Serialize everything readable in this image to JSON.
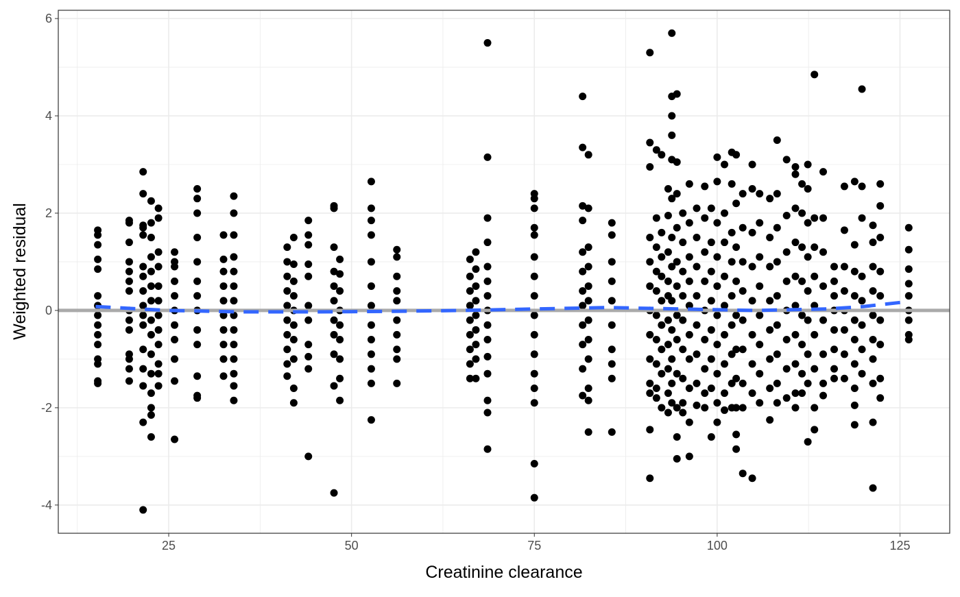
{
  "chart_data": {
    "type": "scatter",
    "title": "",
    "xlabel": "Creatinine clearance",
    "ylabel": "Weighted residual",
    "xlim": [
      9.9,
      131.8
    ],
    "ylim": [
      -4.58,
      6.17
    ],
    "xticks": [
      25,
      50,
      75,
      100,
      125
    ],
    "yticks": [
      -4,
      -2,
      0,
      2,
      4,
      6
    ],
    "grid": true,
    "reference_line": {
      "y": 0,
      "color": "#AAAAAA"
    },
    "smooth_line": {
      "color": "#3366FF",
      "style": "dashed",
      "x": [
        15,
        25,
        35,
        45,
        55,
        65,
        75,
        85,
        95,
        105,
        115,
        120,
        126
      ],
      "y": [
        0.08,
        0.0,
        -0.03,
        -0.03,
        -0.02,
        0.0,
        0.03,
        0.06,
        0.03,
        0.0,
        0.03,
        0.08,
        0.18
      ]
    },
    "point_color": "#000000",
    "columns": [
      {
        "x": 15.3,
        "y": [
          1.65,
          1.55,
          1.35,
          1.05,
          0.85,
          0.3,
          0.1,
          -0.1,
          -0.3,
          -0.5,
          -0.7,
          -1.0,
          -1.1,
          -1.45,
          -1.5
        ]
      },
      {
        "x": 19.6,
        "y": [
          1.85,
          1.8,
          1.4,
          1.0,
          0.8,
          0.6,
          0.4,
          0.0,
          -0.2,
          -0.4,
          -0.9,
          -1.0,
          -1.2,
          -1.45
        ]
      },
      {
        "x": 21.5,
        "y": [
          2.85,
          2.4,
          1.75,
          1.7,
          1.55,
          0.9,
          0.7,
          0.4,
          0.1,
          -0.1,
          -0.3,
          -0.8,
          -1.2,
          -1.55,
          -2.3,
          -4.1
        ]
      },
      {
        "x": 22.6,
        "y": [
          2.25,
          1.8,
          1.5,
          1.1,
          0.8,
          0.5,
          0.2,
          -0.2,
          -0.5,
          -0.9,
          -1.3,
          -1.7,
          -2.0,
          -2.15,
          -2.6
        ]
      },
      {
        "x": 23.6,
        "y": [
          2.1,
          1.9,
          1.2,
          0.9,
          0.5,
          0.2,
          -0.1,
          -0.4,
          -0.7,
          -1.1,
          -1.3,
          -1.55
        ]
      },
      {
        "x": 25.8,
        "y": [
          1.2,
          1.0,
          0.9,
          0.6,
          0.3,
          0.0,
          -0.3,
          -0.6,
          -1.0,
          -1.45,
          -2.65
        ]
      },
      {
        "x": 28.9,
        "y": [
          2.5,
          2.3,
          2.0,
          1.5,
          1.0,
          0.6,
          0.3,
          0.0,
          -0.4,
          -0.7,
          -1.35,
          -1.75,
          -1.8
        ]
      },
      {
        "x": 32.5,
        "y": [
          1.55,
          1.05,
          0.8,
          0.5,
          0.2,
          -0.1,
          -0.4,
          -0.7,
          -1.0,
          -1.35
        ]
      },
      {
        "x": 33.9,
        "y": [
          2.35,
          2.0,
          1.55,
          1.1,
          0.8,
          0.5,
          0.2,
          -0.1,
          -0.4,
          -0.7,
          -1.0,
          -1.3,
          -1.55,
          -1.85
        ]
      },
      {
        "x": 41.2,
        "y": [
          1.3,
          1.0,
          0.7,
          0.4,
          0.1,
          -0.2,
          -0.5,
          -0.8,
          -1.1,
          -1.35
        ]
      },
      {
        "x": 42.1,
        "y": [
          1.5,
          0.95,
          0.6,
          0.3,
          0.0,
          -0.3,
          -0.6,
          -1.0,
          -1.6,
          -1.9
        ]
      },
      {
        "x": 44.1,
        "y": [
          1.85,
          1.55,
          1.35,
          0.95,
          0.7,
          0.1,
          -0.2,
          -0.7,
          -0.95,
          -1.2,
          -3.0
        ]
      },
      {
        "x": 47.6,
        "y": [
          2.15,
          2.1,
          1.3,
          0.8,
          0.5,
          0.2,
          -0.2,
          -0.5,
          -0.9,
          -1.55,
          -3.75
        ]
      },
      {
        "x": 48.4,
        "y": [
          1.05,
          0.75,
          0.4,
          0.0,
          -0.3,
          -0.6,
          -1.0,
          -1.4,
          -1.85
        ]
      },
      {
        "x": 52.7,
        "y": [
          2.65,
          2.1,
          1.85,
          1.55,
          1.0,
          0.5,
          0.1,
          -0.3,
          -0.6,
          -0.9,
          -1.2,
          -1.5,
          -2.25
        ]
      },
      {
        "x": 56.2,
        "y": [
          1.25,
          1.1,
          0.7,
          0.4,
          0.2,
          -0.2,
          -0.5,
          -0.8,
          -1.0,
          -1.5
        ]
      },
      {
        "x": 66.2,
        "y": [
          1.05,
          0.7,
          0.4,
          0.1,
          -0.2,
          -0.5,
          -0.8,
          -1.1,
          -1.4
        ]
      },
      {
        "x": 67.0,
        "y": [
          1.2,
          0.85,
          0.5,
          0.2,
          -0.1,
          -0.4,
          -0.7,
          -1.0,
          -1.4
        ]
      },
      {
        "x": 68.6,
        "y": [
          5.5,
          3.15,
          1.9,
          1.4,
          0.9,
          0.6,
          0.3,
          0.0,
          -0.3,
          -0.6,
          -0.95,
          -1.3,
          -1.85,
          -2.1,
          -2.85
        ]
      },
      {
        "x": 75.0,
        "y": [
          2.4,
          2.3,
          2.1,
          1.7,
          1.55,
          1.1,
          0.7,
          0.3,
          -0.1,
          -0.5,
          -0.9,
          -1.3,
          -1.6,
          -1.9,
          -3.15,
          -3.85
        ]
      },
      {
        "x": 81.6,
        "y": [
          4.4,
          3.35,
          2.15,
          1.85,
          1.2,
          0.8,
          0.4,
          0.1,
          -0.3,
          -0.7,
          -1.2,
          -1.75
        ]
      },
      {
        "x": 82.4,
        "y": [
          3.2,
          2.1,
          1.3,
          0.9,
          0.5,
          0.2,
          -0.2,
          -0.6,
          -1.0,
          -1.6,
          -1.85,
          -2.5
        ]
      },
      {
        "x": 85.6,
        "y": [
          1.8,
          1.55,
          1.0,
          0.6,
          0.2,
          -0.3,
          -0.8,
          -1.1,
          -1.4,
          -2.5
        ]
      },
      {
        "x": 90.8,
        "y": [
          5.3,
          3.45,
          2.95,
          1.5,
          1.0,
          0.5,
          0.0,
          -0.5,
          -1.0,
          -1.5,
          -1.7,
          -2.45,
          -3.45
        ]
      },
      {
        "x": 91.7,
        "y": [
          3.3,
          1.9,
          1.3,
          0.8,
          0.4,
          -0.1,
          -0.6,
          -1.1,
          -1.6,
          -1.8
        ]
      },
      {
        "x": 92.4,
        "y": [
          3.2,
          1.6,
          1.1,
          0.7,
          0.2,
          -0.3,
          -0.8,
          -1.3,
          -2.0
        ]
      },
      {
        "x": 93.3,
        "y": [
          2.5,
          1.95,
          1.2,
          0.6,
          0.3,
          -0.2,
          -0.7,
          -1.2,
          -1.7,
          -2.1
        ]
      },
      {
        "x": 93.8,
        "y": [
          5.7,
          4.4,
          4.0,
          3.6,
          3.1,
          2.3,
          1.5,
          0.9,
          0.2,
          -0.4,
          -1.0,
          -1.5,
          -1.9
        ]
      },
      {
        "x": 94.5,
        "y": [
          4.45,
          3.05,
          2.4,
          1.7,
          1.0,
          0.5,
          -0.1,
          -0.6,
          -1.3,
          -2.0,
          -2.6,
          -3.05
        ]
      },
      {
        "x": 95.3,
        "y": [
          2.0,
          1.4,
          0.8,
          0.3,
          -0.2,
          -0.8,
          -1.4,
          -1.9,
          -2.1
        ]
      },
      {
        "x": 96.2,
        "y": [
          2.6,
          1.8,
          1.1,
          0.6,
          0.1,
          -0.5,
          -1.0,
          -1.6,
          -2.3,
          -3.0
        ]
      },
      {
        "x": 97.2,
        "y": [
          2.1,
          1.5,
          0.9,
          0.3,
          -0.3,
          -0.9,
          -1.5,
          -1.95
        ]
      },
      {
        "x": 98.3,
        "y": [
          2.55,
          1.9,
          1.2,
          0.6,
          0.0,
          -0.6,
          -1.2,
          -1.7,
          -2.0
        ]
      },
      {
        "x": 99.2,
        "y": [
          2.1,
          1.4,
          0.8,
          0.2,
          -0.4,
          -1.0,
          -1.6,
          -2.6
        ]
      },
      {
        "x": 100.0,
        "y": [
          3.15,
          2.65,
          1.8,
          1.1,
          0.5,
          -0.1,
          -0.7,
          -1.3,
          -1.9,
          -2.3
        ]
      },
      {
        "x": 101.0,
        "y": [
          3.0,
          2.0,
          1.4,
          0.7,
          0.1,
          -0.5,
          -1.1,
          -1.7,
          -2.05
        ]
      },
      {
        "x": 102.0,
        "y": [
          3.25,
          2.6,
          1.6,
          1.0,
          0.3,
          -0.3,
          -0.9,
          -1.5,
          -2.0
        ]
      },
      {
        "x": 102.6,
        "y": [
          3.2,
          2.2,
          1.3,
          0.6,
          -0.1,
          -0.8,
          -1.4,
          -2.0,
          -2.55,
          -2.85
        ]
      },
      {
        "x": 103.5,
        "y": [
          2.4,
          1.7,
          1.0,
          0.4,
          -0.2,
          -0.8,
          -1.5,
          -2.0,
          -3.35
        ]
      },
      {
        "x": 104.8,
        "y": [
          3.0,
          2.5,
          1.6,
          0.9,
          0.2,
          -0.5,
          -1.1,
          -1.7,
          -3.45
        ]
      },
      {
        "x": 105.8,
        "y": [
          2.4,
          1.8,
          1.1,
          0.5,
          -0.1,
          -0.7,
          -1.3,
          -1.9
        ]
      },
      {
        "x": 107.2,
        "y": [
          2.3,
          1.5,
          0.9,
          0.2,
          -0.4,
          -1.0,
          -1.6,
          -2.25
        ]
      },
      {
        "x": 108.2,
        "y": [
          3.5,
          2.4,
          1.7,
          1.0,
          0.3,
          -0.3,
          -0.9,
          -1.5,
          -1.9
        ]
      },
      {
        "x": 109.5,
        "y": [
          3.1,
          1.95,
          1.2,
          0.6,
          0.0,
          -0.6,
          -1.2,
          -1.8
        ]
      },
      {
        "x": 110.7,
        "y": [
          2.95,
          2.8,
          2.1,
          1.4,
          0.7,
          0.1,
          -0.5,
          -1.1,
          -1.7,
          -2.0
        ]
      },
      {
        "x": 111.6,
        "y": [
          2.6,
          2.0,
          1.3,
          0.6,
          -0.1,
          -0.7,
          -1.3,
          -1.7
        ]
      },
      {
        "x": 112.4,
        "y": [
          3.0,
          2.5,
          1.8,
          1.1,
          0.4,
          -0.2,
          -0.9,
          -1.5,
          -2.7
        ]
      },
      {
        "x": 113.3,
        "y": [
          4.85,
          1.9,
          1.3,
          0.7,
          0.1,
          -0.5,
          -1.2,
          -2.0,
          -2.45
        ]
      },
      {
        "x": 114.5,
        "y": [
          2.85,
          1.9,
          1.2,
          0.5,
          -0.2,
          -0.9,
          -1.5,
          -1.75
        ]
      },
      {
        "x": 116.0,
        "y": [
          0.9,
          0.6,
          0.3,
          0.0,
          -0.4,
          -0.8,
          -1.2,
          -1.4
        ]
      },
      {
        "x": 117.4,
        "y": [
          2.55,
          1.65,
          0.9,
          0.4,
          0.0,
          -0.4,
          -0.9,
          -1.4
        ]
      },
      {
        "x": 118.8,
        "y": [
          2.65,
          1.35,
          0.8,
          0.3,
          -0.2,
          -0.6,
          -1.1,
          -1.6,
          -1.95,
          -2.35
        ]
      },
      {
        "x": 119.8,
        "y": [
          4.55,
          2.55,
          1.9,
          0.7,
          0.2,
          -0.3,
          -0.8,
          -1.3
        ]
      },
      {
        "x": 121.3,
        "y": [
          1.75,
          1.4,
          0.9,
          0.4,
          -0.1,
          -0.6,
          -1.0,
          -1.5,
          -2.3,
          -3.65
        ]
      },
      {
        "x": 122.3,
        "y": [
          2.6,
          2.15,
          1.5,
          0.8,
          0.3,
          -0.2,
          -0.7,
          -1.4,
          -1.8
        ]
      },
      {
        "x": 126.2,
        "y": [
          1.7,
          1.25,
          0.85,
          0.55,
          0.3,
          0.0,
          -0.2,
          -0.5,
          -0.6
        ]
      }
    ]
  }
}
